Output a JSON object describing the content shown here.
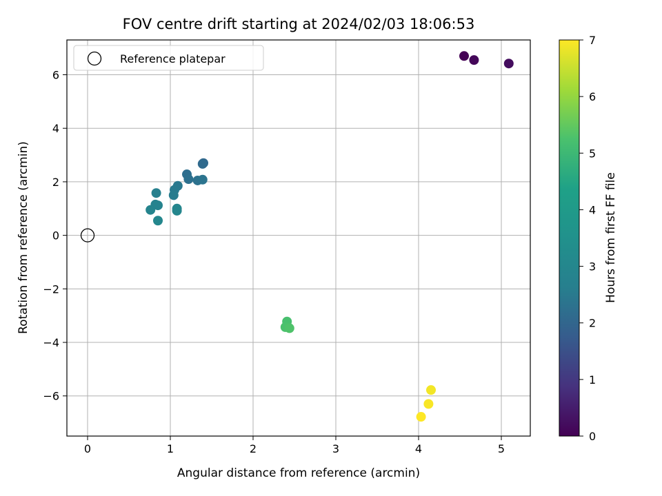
{
  "chart_data": {
    "type": "scatter",
    "title": "FOV centre drift starting at 2024/02/03 18:06:53",
    "xlabel": "Angular distance from reference (arcmin)",
    "ylabel": "Rotation from reference (arcmin)",
    "xlim": [
      -0.25,
      5.35
    ],
    "ylim": [
      -7.5,
      7.3
    ],
    "xticks": [
      0,
      1,
      2,
      3,
      4,
      5
    ],
    "yticks": [
      -6,
      -4,
      -2,
      0,
      2,
      4,
      6
    ],
    "grid": true,
    "legend": {
      "placement": "top-left",
      "entries": [
        "Reference platepar"
      ]
    },
    "reference_point": {
      "x": 0,
      "y": 0,
      "marker": "open-circle"
    },
    "colorbar": {
      "label": "Hours from first FF file",
      "range": [
        0,
        7
      ],
      "ticks": [
        0,
        1,
        2,
        3,
        4,
        5,
        6,
        7
      ],
      "colormap": "viridis"
    },
    "points": [
      {
        "x": 4.55,
        "y": 6.7,
        "c": 0.0
      },
      {
        "x": 4.67,
        "y": 6.55,
        "c": 0.1
      },
      {
        "x": 5.09,
        "y": 6.42,
        "c": 0.2
      },
      {
        "x": 1.4,
        "y": 2.7,
        "c": 2.05
      },
      {
        "x": 1.39,
        "y": 2.67,
        "c": 2.1
      },
      {
        "x": 1.2,
        "y": 2.28,
        "c": 2.2
      },
      {
        "x": 1.22,
        "y": 2.1,
        "c": 2.25
      },
      {
        "x": 1.33,
        "y": 2.05,
        "c": 2.3
      },
      {
        "x": 1.39,
        "y": 2.08,
        "c": 2.35
      },
      {
        "x": 1.09,
        "y": 1.85,
        "c": 2.45
      },
      {
        "x": 1.05,
        "y": 1.7,
        "c": 2.5
      },
      {
        "x": 1.04,
        "y": 1.5,
        "c": 2.55
      },
      {
        "x": 0.83,
        "y": 1.58,
        "c": 2.65
      },
      {
        "x": 0.82,
        "y": 1.15,
        "c": 2.75
      },
      {
        "x": 0.85,
        "y": 1.12,
        "c": 2.8
      },
      {
        "x": 0.76,
        "y": 0.95,
        "c": 2.85
      },
      {
        "x": 1.08,
        "y": 1.0,
        "c": 2.9
      },
      {
        "x": 1.08,
        "y": 0.92,
        "c": 2.95
      },
      {
        "x": 0.85,
        "y": 0.55,
        "c": 3.0
      },
      {
        "x": 2.41,
        "y": -3.22,
        "c": 5.2
      },
      {
        "x": 2.39,
        "y": -3.43,
        "c": 5.25
      },
      {
        "x": 2.44,
        "y": -3.47,
        "c": 5.3
      },
      {
        "x": 4.15,
        "y": -5.78,
        "c": 6.9
      },
      {
        "x": 4.12,
        "y": -6.3,
        "c": 6.95
      },
      {
        "x": 4.03,
        "y": -6.78,
        "c": 7.0
      }
    ]
  }
}
